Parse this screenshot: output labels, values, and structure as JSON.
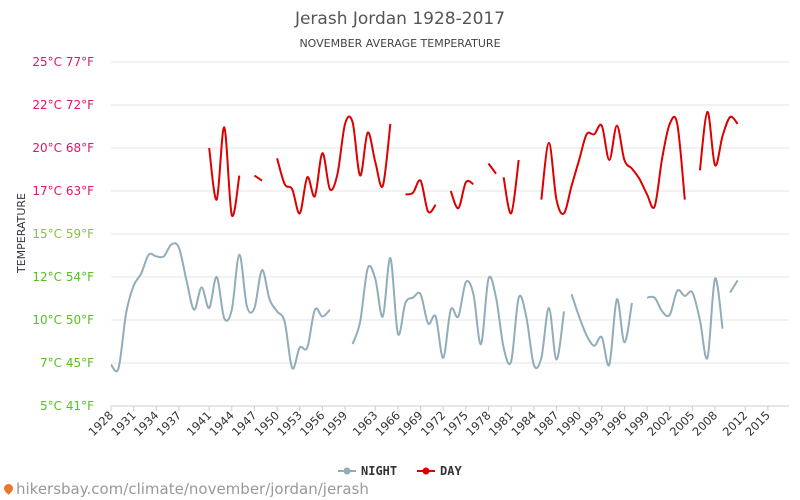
{
  "chart_data": {
    "type": "line",
    "title": "Jerash Jordan 1928-2017",
    "subtitle": "NOVEMBER AVERAGE TEMPERATURE",
    "ylabel": "TEMPERATURE",
    "xlabel": "",
    "ylim": [
      5,
      25
    ],
    "xlim": [
      1928,
      2017
    ],
    "grid": true,
    "legend_position": "bottom-center",
    "y_ticks": [
      {
        "value": 5,
        "label": "5°C 41°F"
      },
      {
        "value": 7.5,
        "label": "7°C 45°F"
      },
      {
        "value": 10,
        "label": "10°C 50°F"
      },
      {
        "value": 12.5,
        "label": "12°C 54°F"
      },
      {
        "value": 15,
        "label": "15°C 59°F"
      },
      {
        "value": 17.5,
        "label": "17°C 63°F"
      },
      {
        "value": 20,
        "label": "20°C 68°F"
      },
      {
        "value": 22.5,
        "label": "22°C 72°F"
      },
      {
        "value": 25,
        "label": "25°C 77°F"
      }
    ],
    "x_ticks": [
      "1928",
      "1931",
      "1934",
      "1937",
      "1941",
      "1944",
      "1947",
      "1950",
      "1953",
      "1956",
      "1959",
      "1963",
      "1966",
      "1969",
      "1972",
      "1975",
      "1978",
      "1981",
      "1984",
      "1987",
      "1990",
      "1993",
      "1996",
      "1999",
      "2002",
      "2005",
      "2008",
      "2012",
      "2015"
    ],
    "series": [
      {
        "name": "NIGHT",
        "color": "#90adb9",
        "points": [
          [
            1928,
            7.4
          ],
          [
            1929,
            7.2
          ],
          [
            1930,
            10.4
          ],
          [
            1931,
            12.0
          ],
          [
            1932,
            12.7
          ],
          [
            1933,
            13.8
          ],
          [
            1934,
            13.7
          ],
          [
            1935,
            13.7
          ],
          [
            1936,
            14.4
          ],
          [
            1937,
            14.2
          ],
          [
            1938,
            12.3
          ],
          [
            1939,
            10.6
          ],
          [
            1940,
            11.9
          ],
          [
            1941,
            10.7
          ],
          [
            1942,
            12.5
          ],
          [
            1943,
            10.1
          ],
          [
            1944,
            10.6
          ],
          [
            1945,
            13.8
          ],
          [
            1946,
            10.8
          ],
          [
            1947,
            10.7
          ],
          [
            1948,
            12.9
          ],
          [
            1949,
            11.2
          ],
          [
            1950,
            10.5
          ],
          [
            1951,
            9.9
          ],
          [
            1952,
            7.2
          ],
          [
            1953,
            8.4
          ],
          [
            1954,
            8.4
          ],
          [
            1955,
            10.6
          ],
          [
            1956,
            10.2
          ],
          [
            1957,
            10.6
          ],
          null,
          [
            1960,
            8.6
          ],
          [
            1961,
            9.9
          ],
          [
            1962,
            13.0
          ],
          [
            1963,
            12.4
          ],
          [
            1964,
            10.2
          ],
          [
            1965,
            13.6
          ],
          [
            1966,
            9.2
          ],
          [
            1967,
            11.0
          ],
          [
            1968,
            11.3
          ],
          [
            1969,
            11.5
          ],
          [
            1970,
            9.8
          ],
          [
            1971,
            10.2
          ],
          [
            1972,
            7.8
          ],
          [
            1973,
            10.6
          ],
          [
            1974,
            10.2
          ],
          [
            1975,
            12.2
          ],
          [
            1976,
            11.5
          ],
          [
            1977,
            8.6
          ],
          [
            1978,
            12.4
          ],
          [
            1979,
            11.3
          ],
          [
            1980,
            8.4
          ],
          [
            1981,
            7.6
          ],
          [
            1982,
            11.3
          ],
          [
            1983,
            10.2
          ],
          [
            1984,
            7.4
          ],
          [
            1985,
            7.8
          ],
          [
            1986,
            10.7
          ],
          [
            1987,
            7.7
          ],
          [
            1988,
            10.5
          ],
          null,
          [
            1989,
            11.5
          ],
          [
            1990,
            10.2
          ],
          [
            1991,
            9.1
          ],
          [
            1992,
            8.5
          ],
          [
            1993,
            9.0
          ],
          [
            1994,
            7.4
          ],
          [
            1995,
            11.2
          ],
          [
            1996,
            8.7
          ],
          [
            1997,
            11.0
          ],
          null,
          [
            1999,
            11.3
          ],
          [
            2000,
            11.3
          ],
          [
            2001,
            10.5
          ],
          [
            2002,
            10.3
          ],
          [
            2003,
            11.7
          ],
          [
            2004,
            11.4
          ],
          [
            2005,
            11.6
          ],
          [
            2006,
            10.0
          ],
          [
            2007,
            7.8
          ],
          [
            2008,
            12.4
          ],
          [
            2009,
            9.5
          ],
          null,
          [
            2010,
            11.6
          ],
          [
            2011,
            12.3
          ]
        ]
      },
      {
        "name": "DAY",
        "color": "#dd0000",
        "points": [
          [
            1941,
            20.0
          ],
          [
            1942,
            17.0
          ],
          [
            1943,
            21.2
          ],
          [
            1944,
            16.1
          ],
          [
            1945,
            18.4
          ],
          null,
          [
            1947,
            18.4
          ],
          [
            1948,
            18.1
          ],
          null,
          [
            1950,
            19.4
          ],
          [
            1951,
            17.9
          ],
          [
            1952,
            17.6
          ],
          [
            1953,
            16.2
          ],
          [
            1954,
            18.3
          ],
          [
            1955,
            17.2
          ],
          [
            1956,
            19.7
          ],
          [
            1957,
            17.6
          ],
          [
            1958,
            18.5
          ],
          [
            1959,
            21.4
          ],
          [
            1960,
            21.5
          ],
          [
            1961,
            18.4
          ],
          [
            1962,
            20.9
          ],
          [
            1963,
            19.2
          ],
          [
            1964,
            17.8
          ],
          [
            1965,
            21.4
          ],
          null,
          [
            1967,
            17.3
          ],
          [
            1968,
            17.4
          ],
          [
            1969,
            18.1
          ],
          [
            1970,
            16.3
          ],
          [
            1971,
            16.7
          ],
          null,
          [
            1973,
            17.5
          ],
          [
            1974,
            16.5
          ],
          [
            1975,
            18.0
          ],
          [
            1976,
            17.9
          ],
          null,
          [
            1978,
            19.1
          ],
          [
            1979,
            18.5
          ],
          null,
          [
            1980,
            18.3
          ],
          [
            1981,
            16.2
          ],
          [
            1982,
            19.3
          ],
          null,
          [
            1985,
            17.0
          ],
          [
            1986,
            20.3
          ],
          [
            1987,
            17.0
          ],
          [
            1988,
            16.2
          ],
          [
            1989,
            17.8
          ],
          [
            1990,
            19.3
          ],
          [
            1991,
            20.8
          ],
          [
            1992,
            20.8
          ],
          [
            1993,
            21.3
          ],
          [
            1994,
            19.3
          ],
          [
            1995,
            21.3
          ],
          [
            1996,
            19.3
          ],
          [
            1997,
            18.8
          ],
          [
            1998,
            18.2
          ],
          [
            1999,
            17.3
          ],
          [
            2000,
            16.6
          ],
          [
            2001,
            19.4
          ],
          [
            2002,
            21.4
          ],
          [
            2003,
            21.4
          ],
          [
            2004,
            17.0
          ],
          null,
          [
            2006,
            18.7
          ],
          [
            2007,
            22.1
          ],
          [
            2008,
            19.0
          ],
          [
            2009,
            20.7
          ],
          [
            2010,
            21.8
          ],
          [
            2011,
            21.4
          ]
        ]
      }
    ]
  },
  "source": {
    "text": "hikersbay.com/climate/november/jordan/jerash",
    "icon": "map-pin-icon"
  }
}
